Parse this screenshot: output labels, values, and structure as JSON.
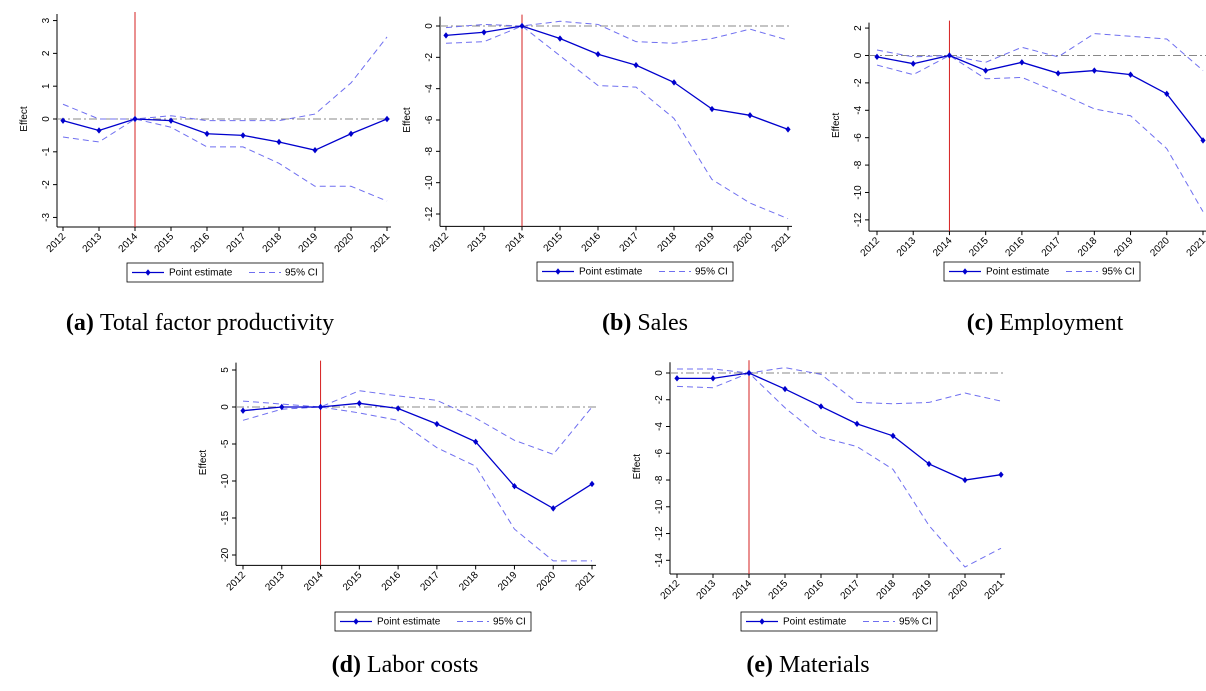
{
  "chart_data": [
    {
      "type": "line",
      "caption_label": "(a)",
      "caption": "Total factor productivity",
      "y_label": "Effect",
      "categories": [
        "2012",
        "2013",
        "2014",
        "2015",
        "2016",
        "2017",
        "2018",
        "2019",
        "2020",
        "2021"
      ],
      "series": [
        {
          "name": "Point estimate",
          "color": "#0000cd",
          "values": [
            -0.05,
            -0.35,
            0,
            -0.05,
            -0.45,
            -0.5,
            -0.7,
            -0.95,
            -0.45,
            0
          ]
        }
      ],
      "ci": {
        "name": "95% CI",
        "color": "#6f6ff0",
        "upper": [
          0.45,
          0,
          0,
          0.1,
          -0.05,
          -0.05,
          -0.05,
          0.15,
          1.1,
          2.5
        ],
        "lower": [
          -0.55,
          -0.7,
          0,
          -0.25,
          -0.85,
          -0.85,
          -1.35,
          -2.05,
          -2.05,
          -2.5
        ]
      },
      "ylim": [
        -3.2,
        3.2
      ],
      "yticks": [
        -3,
        -2,
        -1,
        0,
        1,
        2,
        3
      ],
      "hline": 0,
      "vline": "2014",
      "vline_color": "#d62020"
    },
    {
      "type": "line",
      "caption_label": "(b)",
      "caption": "Sales",
      "y_label": "Effect",
      "categories": [
        "2012",
        "2013",
        "2014",
        "2015",
        "2016",
        "2017",
        "2018",
        "2019",
        "2020",
        "2021"
      ],
      "series": [
        {
          "name": "Point estimate",
          "color": "#0000cd",
          "values": [
            -0.6,
            -0.4,
            0,
            -0.8,
            -1.8,
            -2.5,
            -3.6,
            -5.3,
            -5.7,
            -6.6
          ]
        }
      ],
      "ci": {
        "name": "95% CI",
        "color": "#6f6ff0",
        "upper": [
          -0.1,
          0.1,
          0,
          0.3,
          0.1,
          -1.0,
          -1.1,
          -0.8,
          -0.2,
          -0.9
        ],
        "lower": [
          -1.1,
          -1.0,
          0,
          -1.9,
          -3.8,
          -3.9,
          -5.9,
          -9.8,
          -11.3,
          -12.3
        ]
      },
      "ylim": [
        -12.6,
        0.6
      ],
      "yticks": [
        -12,
        -10,
        -8,
        -6,
        -4,
        -2,
        0
      ],
      "hline": 0,
      "vline": "2014",
      "vline_color": "#d62020"
    },
    {
      "type": "line",
      "caption_label": "(c)",
      "caption": "Employment",
      "y_label": "Effect",
      "categories": [
        "2012",
        "2013",
        "2014",
        "2015",
        "2016",
        "2017",
        "2018",
        "2019",
        "2020",
        "2021"
      ],
      "series": [
        {
          "name": "Point estimate",
          "color": "#0000cd",
          "values": [
            -0.1,
            -0.6,
            0,
            -1.1,
            -0.5,
            -1.3,
            -1.1,
            -1.4,
            -2.8,
            -6.2
          ]
        }
      ],
      "ci": {
        "name": "95% CI",
        "color": "#6f6ff0",
        "upper": [
          0.4,
          -0.1,
          0,
          -0.5,
          0.6,
          -0.1,
          1.6,
          1.4,
          1.2,
          -1.1
        ],
        "lower": [
          -0.7,
          -1.4,
          0,
          -1.7,
          -1.6,
          -2.7,
          -3.9,
          -4.4,
          -6.8,
          -11.4
        ]
      },
      "ylim": [
        -12.6,
        2.4
      ],
      "yticks": [
        -12,
        -10,
        -8,
        -6,
        -4,
        -2,
        0,
        2
      ],
      "hline": 0,
      "vline": "2014",
      "vline_color": "#d62020"
    },
    {
      "type": "line",
      "caption_label": "(d)",
      "caption": "Labor costs",
      "y_label": "Effect",
      "categories": [
        "2012",
        "2013",
        "2014",
        "2015",
        "2016",
        "2017",
        "2018",
        "2019",
        "2020",
        "2021"
      ],
      "series": [
        {
          "name": "Point estimate",
          "color": "#0000cd",
          "values": [
            -0.5,
            0,
            0,
            0.5,
            -0.2,
            -2.3,
            -4.7,
            -10.7,
            -13.7,
            -10.4
          ]
        }
      ],
      "ci": {
        "name": "95% CI",
        "color": "#6f6ff0",
        "upper": [
          0.8,
          0.4,
          0,
          2.2,
          1.5,
          0.9,
          -1.5,
          -4.5,
          -6.4,
          0
        ],
        "lower": [
          -1.8,
          -0.3,
          0,
          -0.8,
          -1.8,
          -5.5,
          -8,
          -16.5,
          -20.8,
          -20.8
        ]
      },
      "ylim": [
        -21,
        6
      ],
      "yticks": [
        -20,
        -15,
        -10,
        -5,
        0,
        5
      ],
      "hline": 0,
      "vline": "2014",
      "vline_color": "#d62020"
    },
    {
      "type": "line",
      "caption_label": "(e)",
      "caption": "Materials",
      "y_label": "Effect",
      "categories": [
        "2012",
        "2013",
        "2014",
        "2015",
        "2016",
        "2017",
        "2018",
        "2019",
        "2020",
        "2021"
      ],
      "series": [
        {
          "name": "Point estimate",
          "color": "#0000cd",
          "values": [
            -0.4,
            -0.4,
            0,
            -1.2,
            -2.5,
            -3.8,
            -4.7,
            -6.8,
            -8.0,
            -7.6
          ]
        }
      ],
      "ci": {
        "name": "95% CI",
        "color": "#6f6ff0",
        "upper": [
          0.3,
          0.3,
          0,
          0.4,
          -0.1,
          -2.2,
          -2.3,
          -2.2,
          -1.5,
          -2.1
        ],
        "lower": [
          -1.0,
          -1.1,
          0,
          -2.6,
          -4.8,
          -5.5,
          -7.2,
          -11.4,
          -14.5,
          -13.1
        ]
      },
      "ylim": [
        -14.8,
        0.8
      ],
      "yticks": [
        -14,
        -12,
        -10,
        -8,
        -6,
        -4,
        -2,
        0
      ],
      "hline": 0,
      "vline": "2014",
      "vline_color": "#d62020"
    }
  ]
}
